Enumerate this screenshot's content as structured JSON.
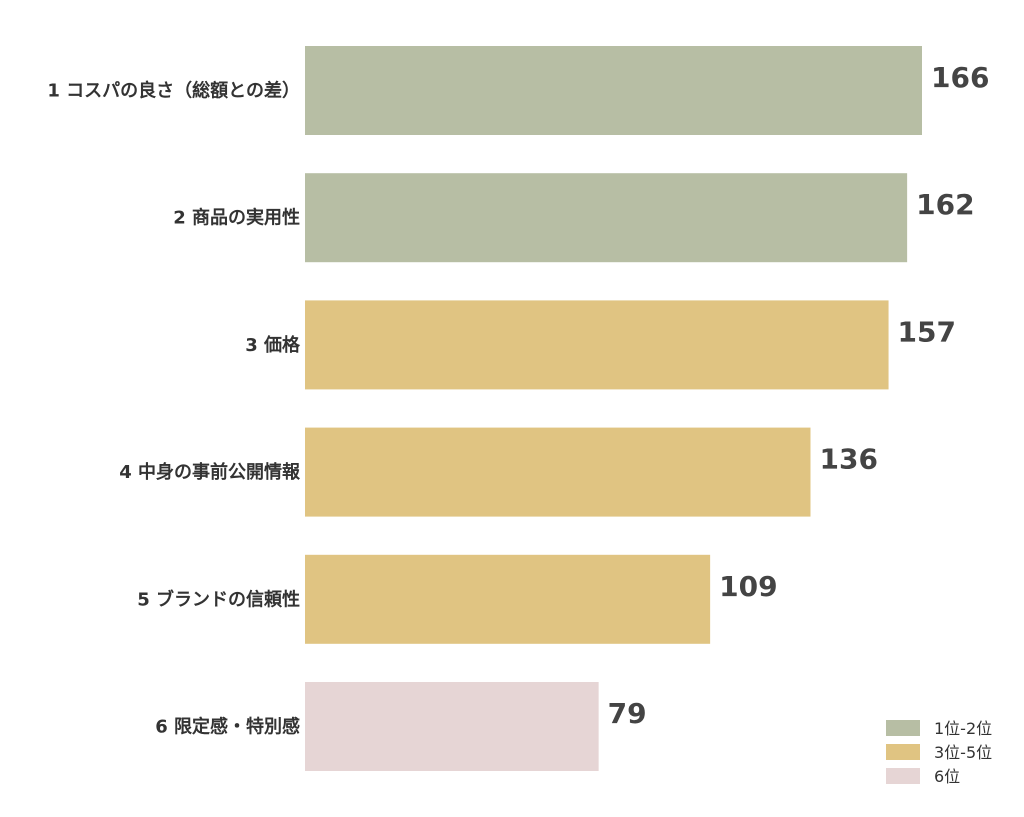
{
  "chart_data": {
    "type": "bar",
    "orientation": "horizontal",
    "categories": [
      "1  コスパの良さ（総額との差）",
      "2  商品の実用性",
      "3  価格",
      "4  中身の事前公開情報",
      "5  ブランドの信頼性",
      "6  限定感・特別感"
    ],
    "values": [
      166,
      162,
      157,
      136,
      109,
      79
    ],
    "value_labels": [
      "166",
      "162",
      "157",
      "136",
      "109",
      "79"
    ],
    "groups": [
      0,
      0,
      1,
      1,
      1,
      2
    ],
    "xlim": [
      0,
      166
    ],
    "grid": false,
    "legend": {
      "placement": "bottom-right",
      "entries": [
        {
          "label": "1位-2位",
          "color": "#b7bea4"
        },
        {
          "label": "3位-5位",
          "color": "#e0c482"
        },
        {
          "label": "6位",
          "color": "#e6d5d5"
        }
      ]
    }
  }
}
